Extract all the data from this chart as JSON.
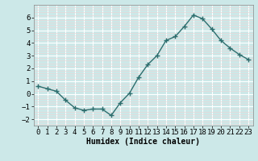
{
  "x": [
    0,
    1,
    2,
    3,
    4,
    5,
    6,
    7,
    8,
    9,
    10,
    11,
    12,
    13,
    14,
    15,
    16,
    17,
    18,
    19,
    20,
    21,
    22,
    23
  ],
  "y": [
    0.6,
    0.4,
    0.2,
    -0.5,
    -1.1,
    -1.3,
    -1.2,
    -1.2,
    -1.7,
    -0.7,
    0.05,
    1.3,
    2.3,
    3.0,
    4.2,
    4.5,
    5.3,
    6.2,
    5.9,
    5.1,
    4.2,
    3.6,
    3.1,
    2.7
  ],
  "line_color": "#2d6e6e",
  "marker": "+",
  "markersize": 4,
  "linewidth": 1.0,
  "xlabel": "Humidex (Indice chaleur)",
  "xlim": [
    -0.5,
    23.5
  ],
  "ylim": [
    -2.5,
    7.0
  ],
  "yticks": [
    -2,
    -1,
    0,
    1,
    2,
    3,
    4,
    5,
    6
  ],
  "xticks": [
    0,
    1,
    2,
    3,
    4,
    5,
    6,
    7,
    8,
    9,
    10,
    11,
    12,
    13,
    14,
    15,
    16,
    17,
    18,
    19,
    20,
    21,
    22,
    23
  ],
  "bg_color": "#cce8e8",
  "grid_color": "#ffffff",
  "grid_minor_color": "#e8d8d8",
  "font_size": 6.5
}
